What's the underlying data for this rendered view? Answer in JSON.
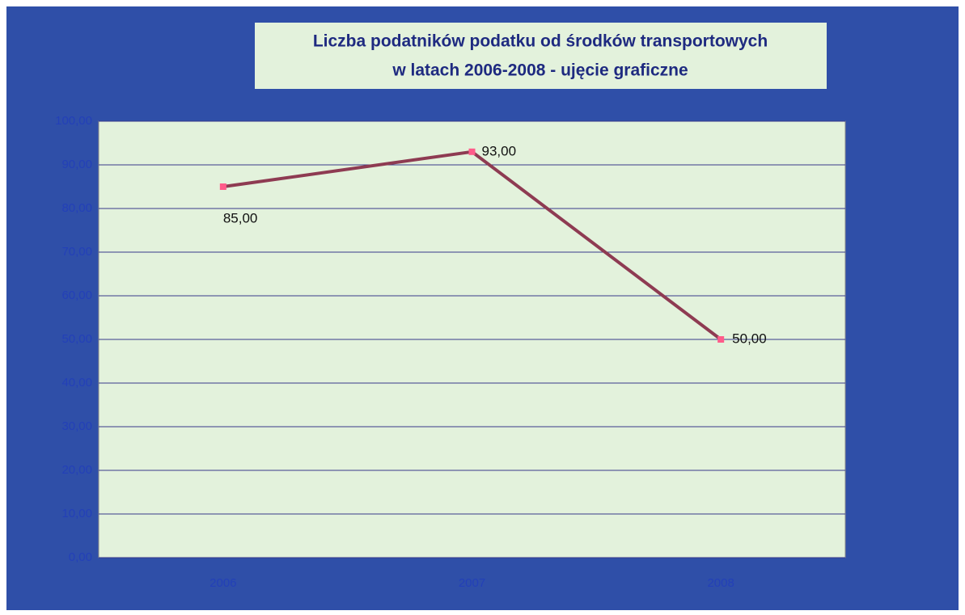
{
  "chart_data": {
    "type": "line",
    "title": [
      "Liczba podatników podatku od środków transportowych",
      "w latach 2006-2008 - ujęcie graficzne"
    ],
    "categories": [
      "2006",
      "2007",
      "2008"
    ],
    "series": [
      {
        "color": "#8e3b52",
        "marker_color": "#ff5c8a",
        "values": [
          85,
          93,
          50
        ],
        "value_labels": [
          "85,00",
          "93,00",
          "50,00"
        ]
      }
    ],
    "ylim": [
      0,
      100
    ],
    "yticks": [
      {
        "value": 0,
        "label": "0,00"
      },
      {
        "value": 10,
        "label": "10,00"
      },
      {
        "value": 20,
        "label": "20,00"
      },
      {
        "value": 30,
        "label": "30,00"
      },
      {
        "value": 40,
        "label": "40,00"
      },
      {
        "value": 50,
        "label": "50,00"
      },
      {
        "value": 60,
        "label": "60,00"
      },
      {
        "value": 70,
        "label": "70,00"
      },
      {
        "value": 80,
        "label": "80,00"
      },
      {
        "value": 90,
        "label": "90,00"
      },
      {
        "value": 100,
        "label": "100,00"
      }
    ],
    "grid": true
  }
}
